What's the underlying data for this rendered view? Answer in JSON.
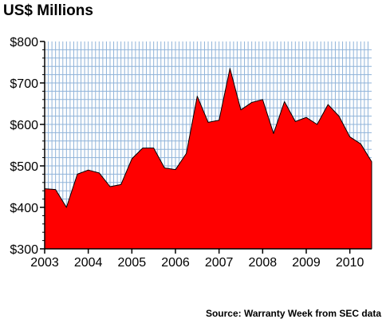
{
  "chart_data": {
    "type": "area",
    "title": "US$ Millions",
    "source": "Source: Warranty Week from SEC data",
    "x_ticks": [
      "2003",
      "2004",
      "2005",
      "2006",
      "2007",
      "2008",
      "2009",
      "2010"
    ],
    "y_ticks": [
      "$300",
      "$400",
      "$500",
      "$600",
      "$700",
      "$800"
    ],
    "ylim": [
      300,
      800
    ],
    "xlim": [
      2003.0,
      2010.5
    ],
    "grid": true,
    "colors": {
      "fill": "#ff0000",
      "grid": "#8fb3d9",
      "outline": "#000000"
    },
    "series": [
      {
        "x": [
          2003.0,
          2003.25,
          2003.5,
          2003.75,
          2004.0,
          2004.25,
          2004.5,
          2004.75,
          2005.0,
          2005.25,
          2005.5,
          2005.75,
          2006.0,
          2006.25,
          2006.5,
          2006.75,
          2007.0,
          2007.25,
          2007.5,
          2007.75,
          2008.0,
          2008.25,
          2008.5,
          2008.75,
          2009.0,
          2009.25,
          2009.5,
          2009.75,
          2010.0,
          2010.25,
          2010.5
        ],
        "values": [
          445,
          443,
          400,
          480,
          490,
          483,
          450,
          455,
          517,
          543,
          543,
          495,
          491,
          530,
          668,
          605,
          610,
          735,
          635,
          653,
          660,
          578,
          655,
          607,
          617,
          600,
          648,
          620,
          570,
          553,
          510
        ]
      }
    ]
  }
}
